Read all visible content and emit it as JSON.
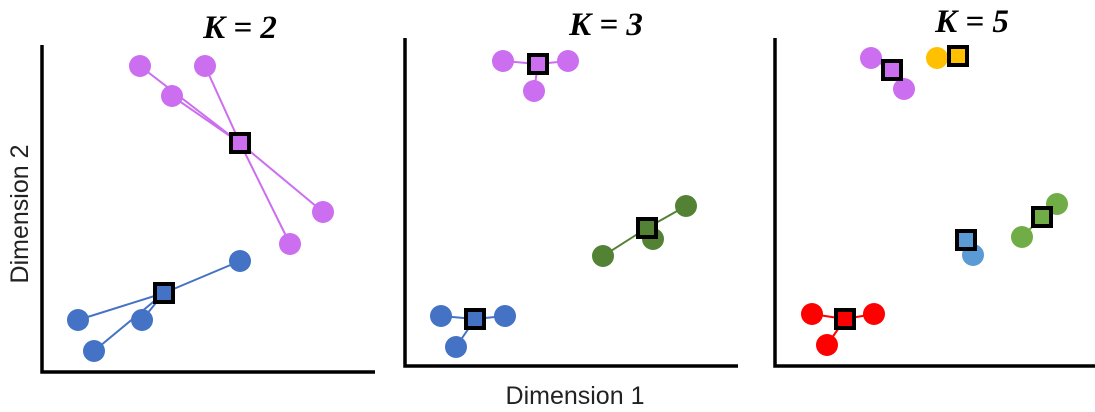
{
  "figure": {
    "xlabel": "Dimension 1",
    "ylabel": "Dimension 2"
  },
  "colors": {
    "purple": "#cc6ef0",
    "blue": "#4472c4",
    "blue_light": "#5b9bd5",
    "green": "#548235",
    "green_light": "#70ad47",
    "red": "#ff0000",
    "gold": "#ffc000",
    "axis": "#000000",
    "centroid_border": "#000000"
  },
  "panels": [
    {
      "title": "K = 2",
      "clusters": [
        {
          "color": "purple",
          "centroid": [
            240,
            143
          ],
          "points": [
            [
              140,
              66
            ],
            [
              205,
              66
            ],
            [
              172,
              96
            ],
            [
              323,
              212
            ],
            [
              290,
              244
            ]
          ]
        },
        {
          "color": "blue",
          "centroid": [
            164,
            293
          ],
          "points": [
            [
              240,
              261
            ],
            [
              78,
              320
            ],
            [
              142,
              320
            ],
            [
              94,
              351
            ]
          ]
        }
      ]
    },
    {
      "title": "K = 3",
      "clusters": [
        {
          "color": "purple",
          "centroid": [
            538,
            64
          ],
          "points": [
            [
              503,
              61
            ],
            [
              568,
              61
            ],
            [
              534,
              91
            ]
          ]
        },
        {
          "color": "green",
          "centroid": [
            647,
            228
          ],
          "points": [
            [
              686,
              206
            ],
            [
              653,
              239
            ],
            [
              603,
              256
            ]
          ]
        },
        {
          "color": "blue",
          "centroid": [
            475,
            319
          ],
          "points": [
            [
              441,
              316
            ],
            [
              505,
              316
            ],
            [
              456,
              347
            ]
          ]
        }
      ]
    },
    {
      "title": "K = 5",
      "clusters": [
        {
          "color": "purple",
          "centroid": [
            892,
            70
          ],
          "points": [
            [
              871,
              58
            ],
            [
              904,
              89
            ]
          ]
        },
        {
          "color": "gold",
          "centroid": [
            958,
            56
          ],
          "points": [
            [
              937,
              58
            ]
          ]
        },
        {
          "color": "green_light",
          "centroid": [
            1042,
            217
          ],
          "points": [
            [
              1057,
              204
            ],
            [
              1022,
              237
            ]
          ]
        },
        {
          "color": "blue_light",
          "centroid": [
            966,
            240
          ],
          "points": [
            [
              973,
              255
            ]
          ]
        },
        {
          "color": "red",
          "centroid": [
            845,
            319
          ],
          "points": [
            [
              812,
              314
            ],
            [
              874,
              314
            ],
            [
              827,
              345
            ]
          ]
        }
      ]
    }
  ]
}
